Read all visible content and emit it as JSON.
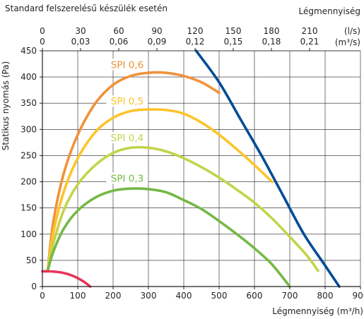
{
  "chart_data": {
    "type": "line",
    "title": "Standard felszerelésű készülék esetén",
    "xlabel": "Légmennyiség (m³/h)",
    "ylabel": "Statikus nyomás (Pa)",
    "top_axis_title": "Légmennyiség",
    "top_axis_unit_ls": "(l/s)",
    "top_axis_unit_m3s": "(m³/s)",
    "xlim": [
      0,
      900
    ],
    "ylim": [
      0,
      450
    ],
    "x_ticks": [
      "0",
      "100",
      "200",
      "300",
      "400",
      "500",
      "600",
      "700",
      "800",
      "900"
    ],
    "y_ticks": [
      "0",
      "50",
      "100",
      "150",
      "200",
      "250",
      "300",
      "350",
      "400",
      "450"
    ],
    "top_ticks_ls": [
      "0",
      "30",
      "60",
      "90",
      "120",
      "150",
      "180",
      "210"
    ],
    "top_ticks_m3s": [
      "0",
      "0,03",
      "0,06",
      "0,09",
      "0,12",
      "0,15",
      "0,18",
      "0,21"
    ],
    "grid": true,
    "series": [
      {
        "name": "SPI 0,6",
        "color": "#f0923a",
        "label_pos": [
          240,
          420
        ],
        "points": [
          [
            15,
            30
          ],
          [
            30,
            120
          ],
          [
            60,
            215
          ],
          [
            100,
            290
          ],
          [
            150,
            350
          ],
          [
            200,
            385
          ],
          [
            250,
            402
          ],
          [
            300,
            408
          ],
          [
            350,
            408
          ],
          [
            400,
            402
          ],
          [
            450,
            390
          ],
          [
            500,
            370
          ]
        ]
      },
      {
        "name": "SPI 0,5",
        "color": "#fcc42a",
        "label_pos": [
          240,
          350
        ],
        "points": [
          [
            15,
            30
          ],
          [
            30,
            100
          ],
          [
            60,
            180
          ],
          [
            100,
            245
          ],
          [
            150,
            295
          ],
          [
            200,
            322
          ],
          [
            250,
            335
          ],
          [
            300,
            338
          ],
          [
            350,
            337
          ],
          [
            400,
            330
          ],
          [
            450,
            313
          ],
          [
            500,
            290
          ],
          [
            550,
            262
          ],
          [
            600,
            232
          ],
          [
            650,
            200
          ]
        ]
      },
      {
        "name": "SPI 0,4",
        "color": "#c2d44b",
        "label_pos": [
          240,
          280
        ],
        "points": [
          [
            15,
            30
          ],
          [
            30,
            80
          ],
          [
            60,
            145
          ],
          [
            100,
            195
          ],
          [
            150,
            232
          ],
          [
            200,
            255
          ],
          [
            250,
            265
          ],
          [
            300,
            265
          ],
          [
            350,
            258
          ],
          [
            400,
            245
          ],
          [
            450,
            228
          ],
          [
            500,
            208
          ],
          [
            550,
            185
          ],
          [
            600,
            160
          ],
          [
            650,
            130
          ],
          [
            700,
            95
          ],
          [
            750,
            58
          ],
          [
            780,
            30
          ]
        ]
      },
      {
        "name": "SPI 0,3",
        "color": "#74b944",
        "label_pos": [
          240,
          203
        ],
        "points": [
          [
            15,
            30
          ],
          [
            30,
            65
          ],
          [
            60,
            110
          ],
          [
            100,
            145
          ],
          [
            150,
            170
          ],
          [
            200,
            183
          ],
          [
            250,
            187
          ],
          [
            300,
            186
          ],
          [
            350,
            180
          ],
          [
            400,
            165
          ],
          [
            450,
            148
          ],
          [
            500,
            125
          ],
          [
            550,
            100
          ],
          [
            600,
            73
          ],
          [
            650,
            42
          ],
          [
            700,
            0
          ]
        ]
      },
      {
        "name": "",
        "color": "#004c97",
        "points": [
          [
            435,
            450
          ],
          [
            500,
            390
          ],
          [
            560,
            320
          ],
          [
            620,
            250
          ],
          [
            680,
            175
          ],
          [
            740,
            100
          ],
          [
            800,
            40
          ],
          [
            840,
            0
          ]
        ]
      },
      {
        "name": "",
        "color": "#e8345a",
        "points": [
          [
            0,
            29
          ],
          [
            20,
            29
          ],
          [
            40,
            28
          ],
          [
            60,
            26
          ],
          [
            80,
            22
          ],
          [
            100,
            16
          ],
          [
            120,
            8
          ],
          [
            135,
            0
          ]
        ]
      }
    ]
  }
}
